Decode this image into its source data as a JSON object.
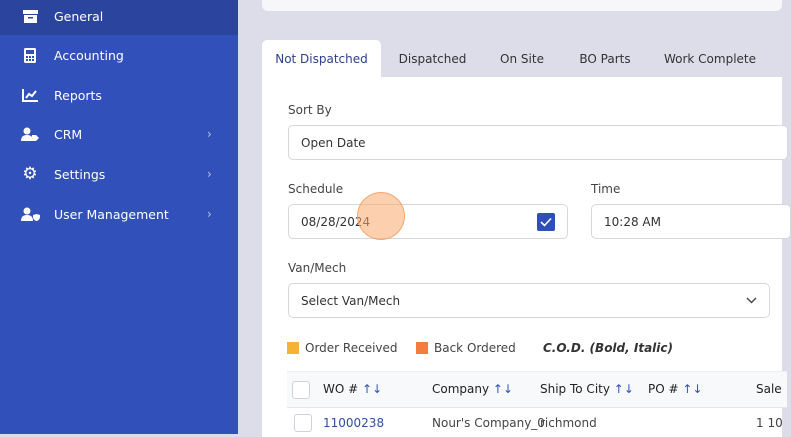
{
  "sidebar": {
    "items": [
      {
        "label": "General",
        "icon": "archive-icon",
        "active": true
      },
      {
        "label": "Accounting",
        "icon": "calculator-icon"
      },
      {
        "label": "Reports",
        "icon": "chart-line-icon"
      },
      {
        "label": "CRM",
        "icon": "user-tag-icon",
        "has_children": true
      },
      {
        "label": "Settings",
        "icon": "gear-icon",
        "has_children": true
      },
      {
        "label": "User Management",
        "icon": "user-shield-icon",
        "has_children": true
      }
    ]
  },
  "tabs": [
    {
      "label": "Not Dispatched",
      "active": true
    },
    {
      "label": "Dispatched"
    },
    {
      "label": "On Site"
    },
    {
      "label": "BO Parts"
    },
    {
      "label": "Work Complete"
    }
  ],
  "form": {
    "sort_by_label": "Sort By",
    "sort_by_value": "Open Date",
    "schedule_label": "Schedule",
    "schedule_value": "08/28/2024",
    "schedule_checked": true,
    "time_label": "Time",
    "time_value": "10:28 AM",
    "van_label": "Van/Mech",
    "van_placeholder": "Select Van/Mech"
  },
  "legend": [
    {
      "label": "Order Received",
      "color": "#f5b335"
    },
    {
      "label": "Back Ordered",
      "color": "#f47c3c"
    },
    {
      "label": "C.O.D. (Bold, Italic)"
    }
  ],
  "table": {
    "columns": [
      "WO #",
      "Company",
      "Ship To City",
      "PO #",
      "Sale"
    ],
    "sort_icon": "↑↓",
    "rows": [
      {
        "wo": "11000238",
        "company": "Nour's Company_0",
        "city": "richmond",
        "po": "",
        "sale": "1 10"
      }
    ]
  },
  "colors": {
    "sidebar": "#3150b9",
    "accent": "#2f4fb8",
    "link": "#2e4fa8"
  }
}
